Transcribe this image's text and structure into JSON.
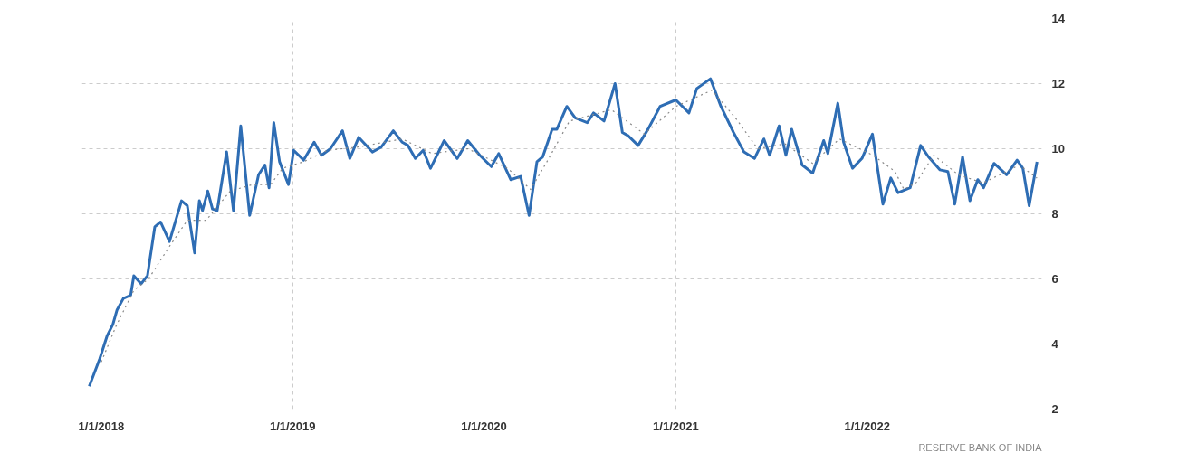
{
  "chart_data": {
    "type": "line",
    "xlim": [
      "2017-11-25",
      "2022-11-30"
    ],
    "ylim": [
      2,
      14
    ],
    "yticks": [
      2,
      4,
      6,
      8,
      10,
      12,
      14
    ],
    "xticks": [
      {
        "value": "2018-01-01",
        "label": "1/1/2018"
      },
      {
        "value": "2019-01-01",
        "label": "1/1/2019"
      },
      {
        "value": "2020-01-01",
        "label": "1/1/2020"
      },
      {
        "value": "2021-01-01",
        "label": "1/1/2021"
      },
      {
        "value": "2022-01-01",
        "label": "1/1/2022"
      }
    ],
    "grid": true,
    "annotations": [
      "RESERVE BANK OF INDIA"
    ],
    "series": [
      {
        "color": "#2e6db4",
        "line_style": "solid",
        "x": [
          "2017-12-09",
          "2017-12-29",
          "2018-01-12",
          "2018-01-23",
          "2018-01-31",
          "2018-02-12",
          "2018-02-26",
          "2018-03-04",
          "2018-03-18",
          "2018-03-30",
          "2018-04-13",
          "2018-04-24",
          "2018-05-11",
          "2018-06-03",
          "2018-06-14",
          "2018-06-28",
          "2018-07-07",
          "2018-07-13",
          "2018-07-23",
          "2018-08-01",
          "2018-08-10",
          "2018-08-28",
          "2018-09-10",
          "2018-09-24",
          "2018-10-11",
          "2018-10-28",
          "2018-11-09",
          "2018-11-17",
          "2018-11-26",
          "2018-12-07",
          "2018-12-24",
          "2019-01-03",
          "2019-01-22",
          "2019-02-11",
          "2019-02-25",
          "2019-03-14",
          "2019-04-06",
          "2019-04-20",
          "2019-05-07",
          "2019-06-02",
          "2019-06-19",
          "2019-07-12",
          "2019-07-29",
          "2019-08-09",
          "2019-08-23",
          "2019-09-07",
          "2019-09-21",
          "2019-10-17",
          "2019-11-11",
          "2019-12-01",
          "2019-12-24",
          "2020-01-15",
          "2020-01-29",
          "2020-02-21",
          "2020-03-11",
          "2020-03-27",
          "2020-04-11",
          "2020-04-22",
          "2020-05-10",
          "2020-05-19",
          "2020-06-07",
          "2020-06-23",
          "2020-07-16",
          "2020-07-28",
          "2020-08-17",
          "2020-09-07",
          "2020-09-21",
          "2020-10-02",
          "2020-10-21",
          "2020-11-09",
          "2020-12-02",
          "2021-01-01",
          "2021-01-26",
          "2021-02-10",
          "2021-03-08",
          "2021-03-28",
          "2021-04-21",
          "2021-05-11",
          "2021-05-31",
          "2021-06-18",
          "2021-06-29",
          "2021-07-17",
          "2021-07-30",
          "2021-08-10",
          "2021-08-30",
          "2021-09-19",
          "2021-10-10",
          "2021-10-18",
          "2021-11-06",
          "2021-11-17",
          "2021-12-04",
          "2021-12-22",
          "2022-01-11",
          "2022-01-31",
          "2022-02-15",
          "2022-03-01",
          "2022-03-24",
          "2022-04-13",
          "2022-04-28",
          "2022-05-20",
          "2022-06-04",
          "2022-06-17",
          "2022-07-02",
          "2022-07-16",
          "2022-07-31",
          "2022-08-11",
          "2022-08-31",
          "2022-09-24",
          "2022-10-14",
          "2022-10-25",
          "2022-11-06",
          "2022-11-21"
        ],
        "values": [
          2.7,
          3.55,
          4.25,
          4.6,
          5.05,
          5.4,
          5.5,
          6.1,
          5.85,
          6.1,
          7.6,
          7.75,
          7.15,
          8.4,
          8.25,
          6.8,
          8.4,
          8.1,
          8.7,
          8.15,
          8.1,
          9.9,
          8.1,
          10.7,
          7.95,
          9.2,
          9.5,
          8.8,
          10.8,
          9.6,
          8.9,
          9.95,
          9.65,
          10.2,
          9.8,
          10.0,
          10.55,
          9.7,
          10.35,
          9.9,
          10.05,
          10.55,
          10.2,
          10.1,
          9.7,
          9.95,
          9.4,
          10.25,
          9.7,
          10.25,
          9.8,
          9.45,
          9.85,
          9.05,
          9.15,
          7.95,
          9.6,
          9.75,
          10.6,
          10.6,
          11.3,
          10.95,
          10.8,
          11.1,
          10.85,
          12.0,
          10.5,
          10.4,
          10.1,
          10.6,
          11.3,
          11.5,
          11.1,
          11.85,
          12.15,
          11.3,
          10.5,
          9.9,
          9.7,
          10.3,
          9.8,
          10.7,
          9.8,
          10.6,
          9.5,
          9.25,
          10.25,
          9.85,
          11.4,
          10.2,
          9.4,
          9.7,
          10.45,
          8.3,
          9.1,
          8.65,
          8.8,
          10.1,
          9.75,
          9.35,
          9.3,
          8.3,
          9.75,
          8.4,
          9.05,
          8.8,
          9.55,
          9.2,
          9.65,
          9.4,
          8.25,
          9.6
        ]
      },
      {
        "color": "#888888",
        "line_style": "dotted",
        "x": [
          "2018-01-01",
          "2018-01-29",
          "2018-03-04",
          "2018-04-01",
          "2018-05-11",
          "2018-06-14",
          "2018-07-20",
          "2018-09-04",
          "2018-10-17",
          "2018-11-20",
          "2018-12-13",
          "2019-01-22",
          "2019-03-08",
          "2019-05-05",
          "2019-07-29",
          "2019-09-24",
          "2019-12-01",
          "2020-02-15",
          "2020-03-30",
          "2020-04-30",
          "2020-06-12",
          "2020-08-31",
          "2020-11-02",
          "2021-01-01",
          "2021-03-11",
          "2021-04-27",
          "2021-06-06",
          "2021-07-28",
          "2021-09-19",
          "2021-11-09",
          "2022-01-12",
          "2022-02-23",
          "2022-03-12",
          "2022-04-04",
          "2022-05-08",
          "2022-06-24",
          "2022-08-10",
          "2022-09-24",
          "2022-10-18",
          "2022-11-21"
        ],
        "values": [
          3.45,
          4.55,
          5.65,
          6.0,
          7.0,
          7.8,
          7.8,
          8.7,
          8.9,
          8.9,
          9.4,
          9.6,
          9.95,
          10.05,
          10.3,
          9.85,
          10.0,
          9.4,
          8.75,
          9.6,
          10.85,
          11.2,
          10.45,
          11.3,
          11.8,
          10.9,
          10.0,
          10.15,
          9.55,
          10.3,
          9.8,
          9.3,
          8.75,
          8.95,
          9.8,
          9.2,
          8.95,
          9.3,
          9.5,
          9.1
        ]
      }
    ]
  }
}
